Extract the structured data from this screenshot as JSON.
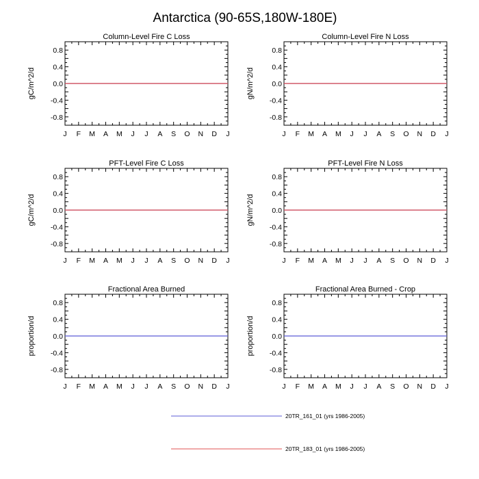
{
  "figure": {
    "title": "Antarctica (90-65S,180W-180E)"
  },
  "legend": [
    {
      "label": "20TR_161_01 (yrs 1986-2005)",
      "color": "#5b5bd6"
    },
    {
      "label": "20TR_183_01 (yrs 1986-2005)",
      "color": "#e05050"
    }
  ],
  "chart_data": [
    {
      "type": "line",
      "title": "Column-Level Fire C Loss",
      "ylabel": "gC/m^2/d",
      "ylim": [
        -1,
        1
      ],
      "yticks": [
        "0.8",
        "0.4",
        "0.0",
        "-0.4",
        "-0.8"
      ],
      "categories": [
        "J",
        "F",
        "M",
        "A",
        "M",
        "J",
        "J",
        "A",
        "S",
        "O",
        "N",
        "D",
        "J"
      ],
      "series": [
        {
          "name": "20TR_161_01 (yrs 1986-2005)",
          "color": "#5b5bd6",
          "values": [
            0,
            0,
            0,
            0,
            0,
            0,
            0,
            0,
            0,
            0,
            0,
            0,
            0
          ]
        },
        {
          "name": "20TR_183_01 (yrs 1986-2005)",
          "color": "#e05050",
          "values": [
            0,
            0,
            0,
            0,
            0,
            0,
            0,
            0,
            0,
            0,
            0,
            0,
            0
          ]
        }
      ]
    },
    {
      "type": "line",
      "title": "Column-Level Fire N Loss",
      "ylabel": "gN/m^2/d",
      "ylim": [
        -1,
        1
      ],
      "yticks": [
        "0.8",
        "0.4",
        "0.0",
        "-0.4",
        "-0.8"
      ],
      "categories": [
        "J",
        "F",
        "M",
        "A",
        "M",
        "J",
        "J",
        "A",
        "S",
        "O",
        "N",
        "D",
        "J"
      ],
      "series": [
        {
          "name": "20TR_161_01 (yrs 1986-2005)",
          "color": "#5b5bd6",
          "values": [
            0,
            0,
            0,
            0,
            0,
            0,
            0,
            0,
            0,
            0,
            0,
            0,
            0
          ]
        },
        {
          "name": "20TR_183_01 (yrs 1986-2005)",
          "color": "#e05050",
          "values": [
            0,
            0,
            0,
            0,
            0,
            0,
            0,
            0,
            0,
            0,
            0,
            0,
            0
          ]
        }
      ]
    },
    {
      "type": "line",
      "title": "PFT-Level Fire C Loss",
      "ylabel": "gC/m^2/d",
      "ylim": [
        -1,
        1
      ],
      "yticks": [
        "0.8",
        "0.4",
        "0.0",
        "-0.4",
        "-0.8"
      ],
      "categories": [
        "J",
        "F",
        "M",
        "A",
        "M",
        "J",
        "J",
        "A",
        "S",
        "O",
        "N",
        "D",
        "J"
      ],
      "series": [
        {
          "name": "20TR_161_01 (yrs 1986-2005)",
          "color": "#5b5bd6",
          "values": [
            0,
            0,
            0,
            0,
            0,
            0,
            0,
            0,
            0,
            0,
            0,
            0,
            0
          ]
        },
        {
          "name": "20TR_183_01 (yrs 1986-2005)",
          "color": "#e05050",
          "values": [
            0,
            0,
            0,
            0,
            0,
            0,
            0,
            0,
            0,
            0,
            0,
            0,
            0
          ]
        }
      ]
    },
    {
      "type": "line",
      "title": "PFT-Level Fire N Loss",
      "ylabel": "gN/m^2/d",
      "ylim": [
        -1,
        1
      ],
      "yticks": [
        "0.8",
        "0.4",
        "0.0",
        "-0.4",
        "-0.8"
      ],
      "categories": [
        "J",
        "F",
        "M",
        "A",
        "M",
        "J",
        "J",
        "A",
        "S",
        "O",
        "N",
        "D",
        "J"
      ],
      "series": [
        {
          "name": "20TR_161_01 (yrs 1986-2005)",
          "color": "#5b5bd6",
          "values": [
            0,
            0,
            0,
            0,
            0,
            0,
            0,
            0,
            0,
            0,
            0,
            0,
            0
          ]
        },
        {
          "name": "20TR_183_01 (yrs 1986-2005)",
          "color": "#e05050",
          "values": [
            0,
            0,
            0,
            0,
            0,
            0,
            0,
            0,
            0,
            0,
            0,
            0,
            0
          ]
        }
      ]
    },
    {
      "type": "line",
      "title": "Fractional Area Burned",
      "ylabel": "proportion/d",
      "ylim": [
        -1,
        1
      ],
      "yticks": [
        "0.8",
        "0.4",
        "0.0",
        "-0.4",
        "-0.8"
      ],
      "categories": [
        "J",
        "F",
        "M",
        "A",
        "M",
        "J",
        "J",
        "A",
        "S",
        "O",
        "N",
        "D",
        "J"
      ],
      "series": [
        {
          "name": "20TR_161_01 (yrs 1986-2005)",
          "color": "#5b5bd6",
          "values": [
            0,
            0,
            0,
            0,
            0,
            0,
            0,
            0,
            0,
            0,
            0,
            0,
            0
          ]
        }
      ]
    },
    {
      "type": "line",
      "title": "Fractional Area Burned - Crop",
      "ylabel": "proportion/d",
      "ylim": [
        -1,
        1
      ],
      "yticks": [
        "0.8",
        "0.4",
        "0.0",
        "-0.4",
        "-0.8"
      ],
      "categories": [
        "J",
        "F",
        "M",
        "A",
        "M",
        "J",
        "J",
        "A",
        "S",
        "O",
        "N",
        "D",
        "J"
      ],
      "series": [
        {
          "name": "20TR_161_01 (yrs 1986-2005)",
          "color": "#5b5bd6",
          "values": [
            0,
            0,
            0,
            0,
            0,
            0,
            0,
            0,
            0,
            0,
            0,
            0,
            0
          ]
        }
      ]
    }
  ]
}
